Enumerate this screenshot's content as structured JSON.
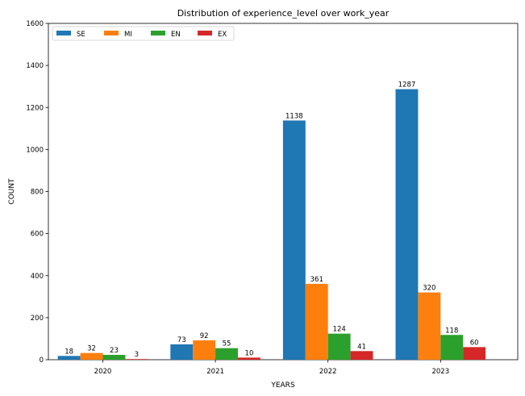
{
  "chart_data": {
    "type": "bar",
    "title": "Distribution of experience_level over work_year",
    "xlabel": "YEARS",
    "ylabel": "COUNT",
    "categories": [
      "2020",
      "2021",
      "2022",
      "2023"
    ],
    "series": [
      {
        "name": "SE",
        "color": "#1f77b4",
        "values": [
          18,
          73,
          1138,
          1287
        ]
      },
      {
        "name": "MI",
        "color": "#ff7f0e",
        "values": [
          32,
          92,
          361,
          320
        ]
      },
      {
        "name": "EN",
        "color": "#2ca02c",
        "values": [
          23,
          55,
          124,
          118
        ]
      },
      {
        "name": "EX",
        "color": "#d62728",
        "values": [
          3,
          10,
          41,
          60
        ]
      }
    ],
    "ylim": [
      0,
      1600
    ],
    "yticks": [
      0,
      200,
      400,
      600,
      800,
      1000,
      1200,
      1400,
      1600
    ],
    "legend_position": "top-left",
    "grid": false
  }
}
